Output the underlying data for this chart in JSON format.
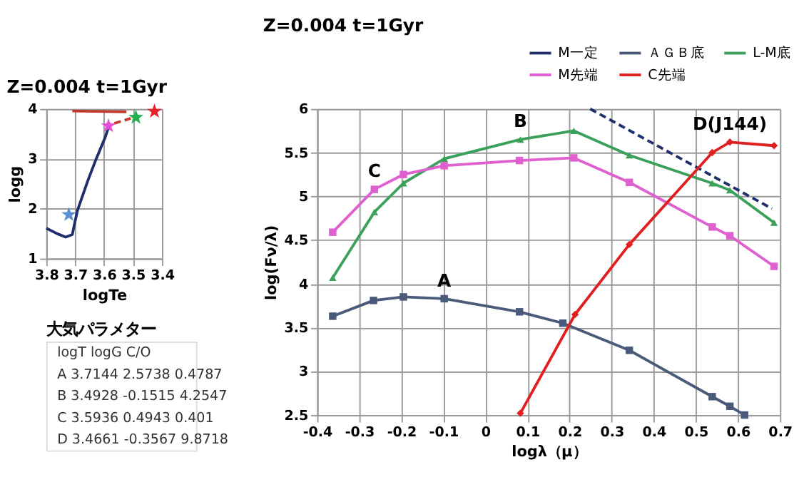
{
  "chart_data": [
    {
      "type": "line",
      "title": "Z=0.004 t=1Gyr",
      "xlabel": "logTe",
      "ylabel": "logg",
      "xlim": [
        3.8,
        3.4
      ],
      "ylim": [
        1,
        4
      ],
      "xticks": [
        3.8,
        3.7,
        3.6,
        3.5,
        3.4
      ],
      "yticks": [
        1,
        2,
        3,
        4
      ],
      "grid": true,
      "series": [
        {
          "color": "#1f2f6b",
          "x": [
            3.8,
            3.763,
            3.733,
            3.71,
            3.704,
            3.692,
            3.657,
            3.628,
            3.597,
            3.585
          ],
          "values": [
            1.61,
            1.5,
            1.43,
            1.48,
            1.65,
            1.97,
            2.55,
            2.99,
            3.42,
            3.63
          ]
        },
        {
          "color": "#c0392b",
          "x": [
            3.71,
            3.523
          ],
          "values": [
            3.96,
            3.94
          ]
        },
        {
          "color": "#c0392b",
          "line_style": "dashed",
          "x": [
            3.565,
            3.508
          ],
          "values": [
            3.71,
            3.81
          ]
        },
        {
          "type": "scatter",
          "marker": "star",
          "x": [
            3.722,
            3.585,
            3.49,
            3.426
          ],
          "values": [
            1.88,
            3.66,
            3.83,
            3.95
          ],
          "colors": [
            "#5b8fd0",
            "#e84fd8",
            "#22b04c",
            "#e8202a"
          ]
        }
      ]
    },
    {
      "type": "other",
      "title": "大気パラメター",
      "annotations": [
        "   logT      logG      C/O",
        "A 3.7144   2.5738   0.4787",
        "B 3.4928  -0.1515   4.2547",
        "C 3.5936   0.4943   0.401",
        "D 3.4661  -0.3567   9.8718"
      ]
    },
    {
      "type": "line",
      "title": "Z=0.004  t=1Gyr",
      "xlabel": "logλ（μ）",
      "ylabel": "log(Fν/λ)",
      "xlim": [
        -0.4,
        0.7
      ],
      "ylim": [
        2.5,
        6
      ],
      "xticks": [
        -0.4,
        -0.3,
        -0.2,
        -0.1,
        0,
        0.1,
        0.2,
        0.3,
        0.4,
        0.5,
        0.6,
        0.7
      ],
      "yticks": [
        2.5,
        3,
        3.5,
        4,
        4.5,
        5,
        5.5,
        6
      ],
      "grid": true,
      "legend": "top right",
      "series": [
        {
          "name": "M一定",
          "color": "#1f2f6b",
          "line_style": "dashed",
          "marker": "none",
          "x": [
            0.249,
            0.681
          ],
          "values": [
            6.0,
            4.86
          ]
        },
        {
          "name": "ＡＧＢ底",
          "color": "#4a5a7a",
          "marker": "square",
          "x": [
            -0.363,
            -0.266,
            -0.195,
            -0.098,
            0.081,
            0.184,
            0.342,
            0.539,
            0.581,
            0.616
          ],
          "values": [
            3.63,
            3.81,
            3.85,
            3.83,
            3.68,
            3.55,
            3.24,
            2.71,
            2.6,
            2.5
          ]
        },
        {
          "name": "L-M底",
          "color": "#3aa05a",
          "marker": "triangle",
          "x": [
            -0.363,
            -0.264,
            -0.195,
            -0.098,
            0.083,
            0.21,
            0.342,
            0.539,
            0.581,
            0.686
          ],
          "values": [
            4.07,
            4.82,
            5.15,
            5.43,
            5.65,
            5.75,
            5.47,
            5.15,
            5.07,
            4.7
          ]
        },
        {
          "name": "M先端",
          "color": "#e060d0",
          "marker": "square",
          "x": [
            -0.363,
            -0.264,
            -0.195,
            -0.098,
            0.081,
            0.21,
            0.342,
            0.539,
            0.581,
            0.686
          ],
          "values": [
            4.59,
            5.08,
            5.25,
            5.35,
            5.41,
            5.44,
            5.16,
            4.65,
            4.55,
            4.2
          ]
        },
        {
          "name": "C先端",
          "color": "#e02020",
          "marker": "diamond",
          "x": [
            0.083,
            0.213,
            0.342,
            0.539,
            0.581,
            0.686
          ],
          "values": [
            2.52,
            3.65,
            4.45,
            5.5,
            5.62,
            5.58
          ]
        }
      ],
      "annotations": [
        {
          "text": "A",
          "x": -0.098,
          "y": 3.83
        },
        {
          "text": "B",
          "x": 0.083,
          "y": 5.65
        },
        {
          "text": "C",
          "x": -0.264,
          "y": 5.08
        },
        {
          "text": "D(J144)",
          "x": 0.581,
          "y": 5.62
        }
      ]
    }
  ]
}
